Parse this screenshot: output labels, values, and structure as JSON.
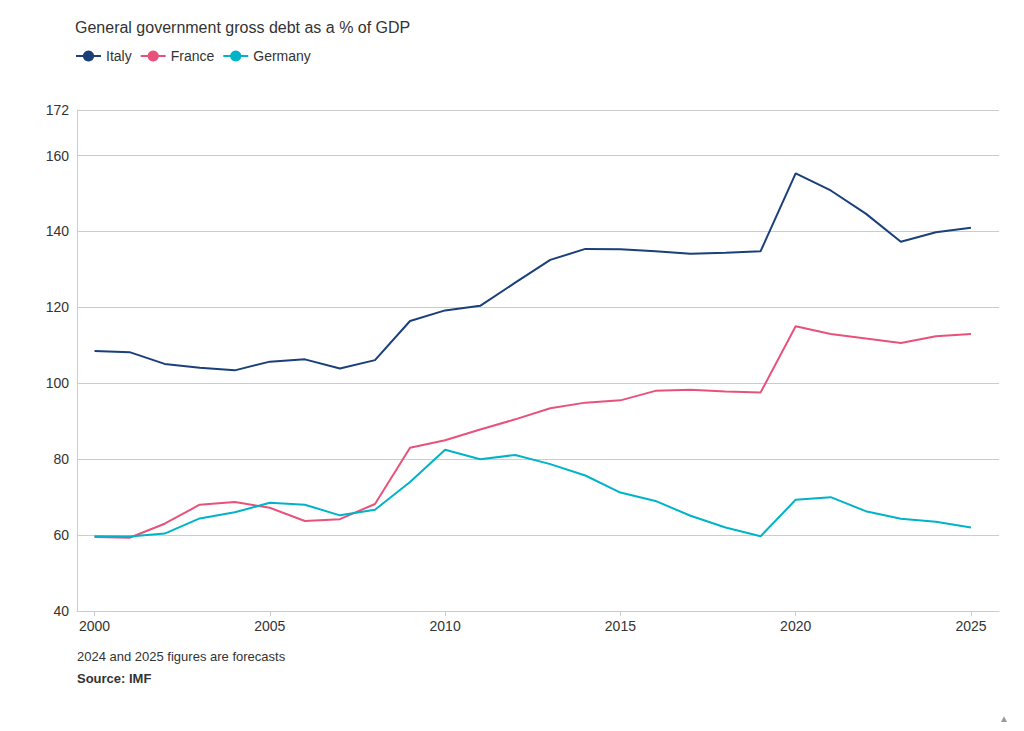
{
  "chart_data": {
    "type": "line",
    "title": "General government gross debt as a % of GDP",
    "annotations": [
      "2024 and 2025 figures are forecasts",
      "Source: IMF",
      "▲"
    ],
    "x": [
      2000,
      2001,
      2002,
      2003,
      2004,
      2005,
      2006,
      2007,
      2008,
      2009,
      2010,
      2011,
      2012,
      2013,
      2014,
      2015,
      2016,
      2017,
      2018,
      2019,
      2020,
      2021,
      2022,
      2023,
      2024,
      2025
    ],
    "series": [
      {
        "name": "Italy",
        "color": "#1a3f7a",
        "values": [
          108.5,
          108.2,
          105.1,
          104.1,
          103.4,
          105.7,
          106.3,
          103.9,
          106.1,
          116.4,
          119.2,
          120.4,
          126.5,
          132.5,
          135.4,
          135.3,
          134.8,
          134.1,
          134.4,
          134.8,
          155.3,
          150.8,
          144.7,
          137.3,
          139.8,
          141.0
        ]
      },
      {
        "name": "France",
        "color": "#e8527a",
        "values": [
          59.5,
          59.3,
          63.0,
          68.0,
          68.7,
          67.2,
          63.7,
          64.2,
          68.2,
          83.0,
          85.0,
          87.8,
          90.5,
          93.4,
          94.9,
          95.5,
          98.0,
          98.3,
          97.8,
          97.6,
          115.0,
          113.0,
          111.8,
          110.6,
          112.4,
          113.0
        ]
      },
      {
        "name": "Germany",
        "color": "#00b3c8",
        "values": [
          59.7,
          59.6,
          60.4,
          64.4,
          66.0,
          68.5,
          68.0,
          65.2,
          66.7,
          74.0,
          82.5,
          80.0,
          81.1,
          78.7,
          75.7,
          71.2,
          69.0,
          65.1,
          62.0,
          59.7,
          69.3,
          70.0,
          66.3,
          64.3,
          63.5,
          62.0
        ]
      }
    ],
    "xlim": [
      1999.5,
      2025.8
    ],
    "xticks": [
      2000,
      2005,
      2010,
      2015,
      2020,
      2025
    ],
    "ylim": [
      40,
      172
    ],
    "yticks": [
      40,
      60,
      80,
      100,
      120,
      140,
      160
    ],
    "grid": true,
    "legend": "upper left"
  }
}
